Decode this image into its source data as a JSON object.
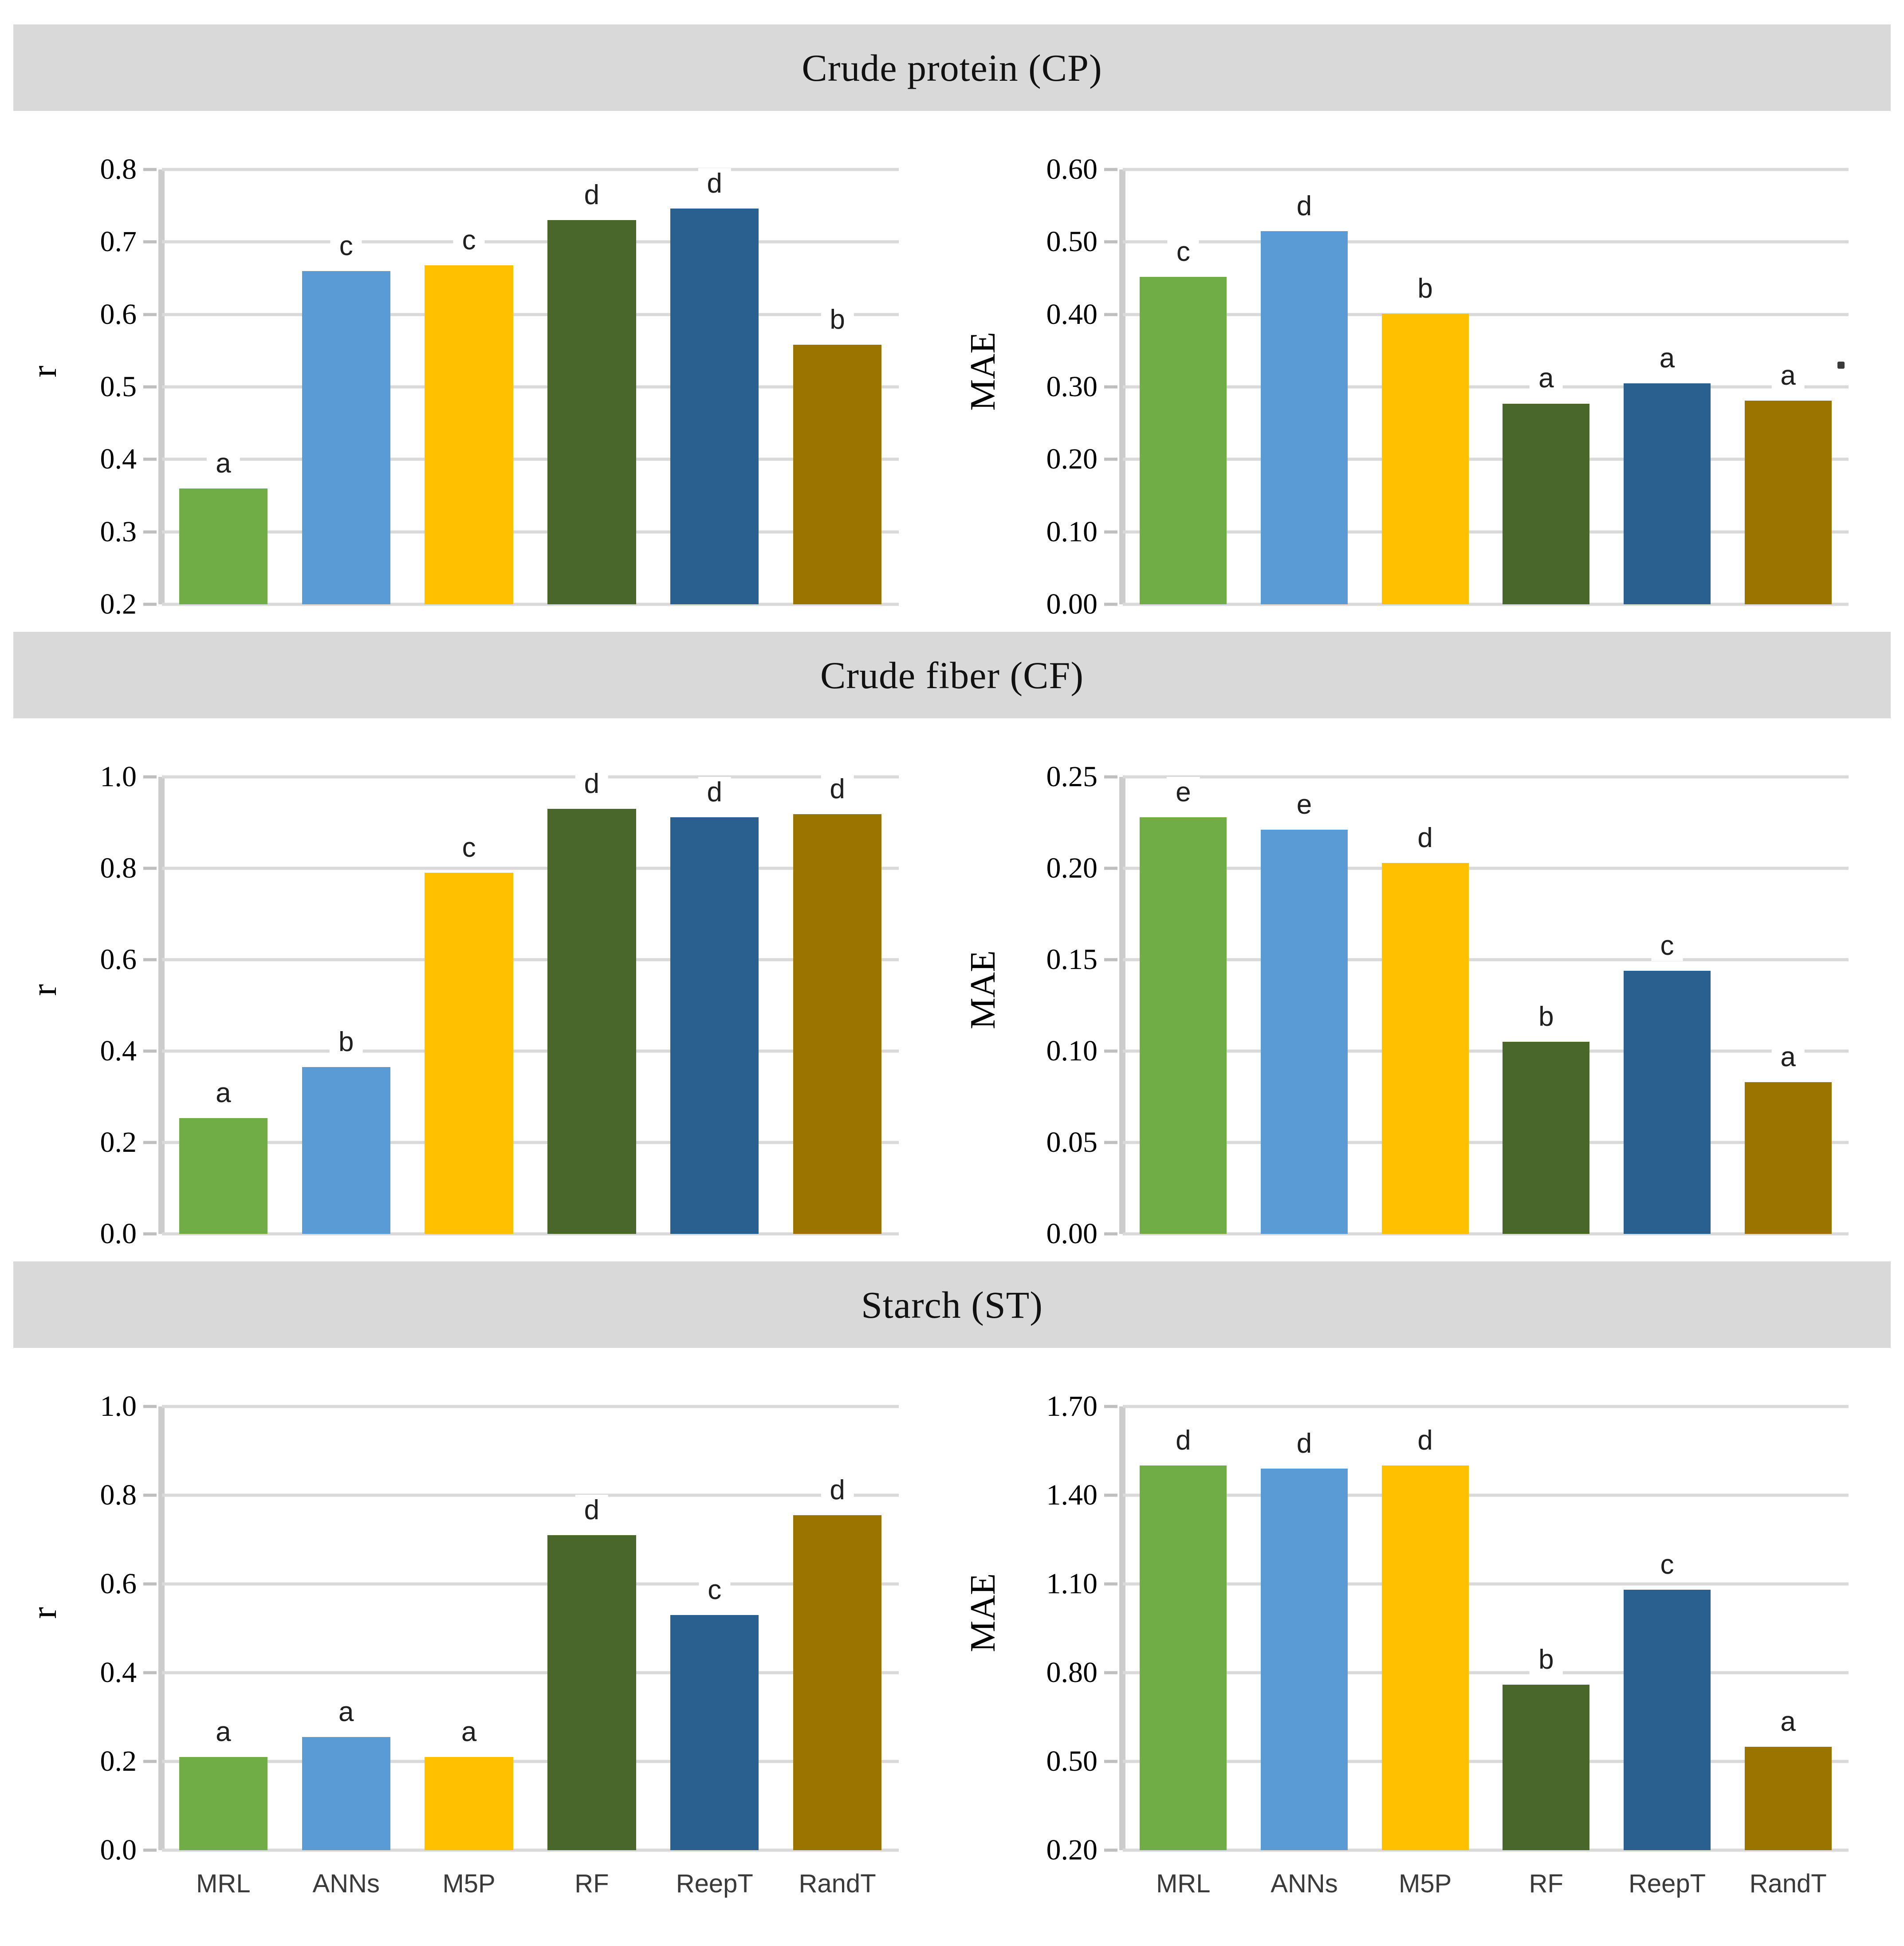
{
  "figure": {
    "background": "#ffffff",
    "band_bg": "#d9d9d9",
    "gridline_color": "#d9d9d9",
    "axis_line_color": "#cccccc",
    "tick_mark_color": "#bfbfbf"
  },
  "sections": [
    {
      "title": "Crude protein (CP)"
    },
    {
      "title": "Crude fiber (CF)"
    },
    {
      "title": "Starch (ST)"
    }
  ],
  "categories": [
    "MRL",
    "ANNs",
    "M5P",
    "RF",
    "ReepT",
    "RandT"
  ],
  "bar_colors": [
    "#70AD47",
    "#5B9BD5",
    "#FFC000",
    "#4A672B",
    "#29608F",
    "#9B7400"
  ],
  "chart_data": [
    {
      "type": "bar",
      "panel": "Crude protein (CP)",
      "title": "Crude protein (CP) — r",
      "ylabel": "r",
      "ylim": [
        0.2,
        0.8
      ],
      "yticks": [
        "0.8",
        "0.7",
        "0.6",
        "0.5",
        "0.4",
        "0.3",
        "0.2"
      ],
      "categories": [
        "MRL",
        "ANNs",
        "M5P",
        "RF",
        "ReepT",
        "RandT"
      ],
      "values": [
        0.36,
        0.66,
        0.668,
        0.73,
        0.746,
        0.558
      ],
      "letters": [
        "a",
        "c",
        "c",
        "d",
        "d",
        "b"
      ],
      "grid": true,
      "show_x_labels": false
    },
    {
      "type": "bar",
      "panel": "Crude protein (CP)",
      "title": "Crude protein (CP) — MAE",
      "ylabel": "MAE",
      "ylim": [
        0.0,
        0.6
      ],
      "yticks": [
        "0.60",
        "0.50",
        "0.40",
        "0.30",
        "0.20",
        "0.10",
        "0.00"
      ],
      "categories": [
        "MRL",
        "ANNs",
        "M5P",
        "RF",
        "ReepT",
        "RandT"
      ],
      "values": [
        0.452,
        0.515,
        0.401,
        0.277,
        0.305,
        0.281
      ],
      "letters": [
        "c",
        "d",
        "b",
        "a",
        "a",
        "a"
      ],
      "grid": true,
      "show_x_labels": false,
      "stray_dot": {
        "y_value": 0.335,
        "x_fraction": 0.985
      }
    },
    {
      "type": "bar",
      "panel": "Crude fiber (CF)",
      "title": "Crude fiber (CF) — r",
      "ylabel": "r",
      "ylim": [
        0.0,
        1.0
      ],
      "yticks": [
        "1.0",
        "0.8",
        "0.6",
        "0.4",
        "0.2",
        "0.0"
      ],
      "categories": [
        "MRL",
        "ANNs",
        "M5P",
        "RF",
        "ReepT",
        "RandT"
      ],
      "values": [
        0.253,
        0.365,
        0.79,
        0.93,
        0.912,
        0.918
      ],
      "letters": [
        "a",
        "b",
        "c",
        "d",
        "d",
        "d"
      ],
      "grid": true,
      "show_x_labels": false
    },
    {
      "type": "bar",
      "panel": "Crude fiber (CF)",
      "title": "Crude fiber (CF) — MAE",
      "ylabel": "MAE",
      "ylim": [
        0.0,
        0.25
      ],
      "yticks": [
        "0.25",
        "0.20",
        "0.15",
        "0.10",
        "0.05",
        "0.00"
      ],
      "categories": [
        "MRL",
        "ANNs",
        "M5P",
        "RF",
        "ReepT",
        "RandT"
      ],
      "values": [
        0.228,
        0.221,
        0.203,
        0.105,
        0.144,
        0.083
      ],
      "letters": [
        "e",
        "e",
        "d",
        "b",
        "c",
        "a"
      ],
      "grid": true,
      "show_x_labels": false
    },
    {
      "type": "bar",
      "panel": "Starch (ST)",
      "title": "Starch (ST) — r",
      "ylabel": "r",
      "ylim": [
        0.0,
        1.0
      ],
      "yticks": [
        "1.0",
        "0.8",
        "0.6",
        "0.4",
        "0.2",
        "0.0"
      ],
      "categories": [
        "MRL",
        "ANNs",
        "M5P",
        "RF",
        "ReepT",
        "RandT"
      ],
      "values": [
        0.21,
        0.255,
        0.21,
        0.71,
        0.53,
        0.755
      ],
      "letters": [
        "a",
        "a",
        "a",
        "d",
        "c",
        "d"
      ],
      "grid": true,
      "show_x_labels": true
    },
    {
      "type": "bar",
      "panel": "Starch (ST)",
      "title": "Starch (ST) — MAE",
      "ylabel": "MAE",
      "ylim": [
        0.2,
        1.7
      ],
      "yticks": [
        "1.70",
        "1.40",
        "1.10",
        "0.80",
        "0.50",
        "0.20"
      ],
      "categories": [
        "MRL",
        "ANNs",
        "M5P",
        "RF",
        "ReepT",
        "RandT"
      ],
      "values": [
        1.5,
        1.49,
        1.5,
        0.76,
        1.08,
        0.55
      ],
      "letters": [
        "d",
        "d",
        "d",
        "b",
        "c",
        "a"
      ],
      "grid": true,
      "show_x_labels": true
    }
  ]
}
